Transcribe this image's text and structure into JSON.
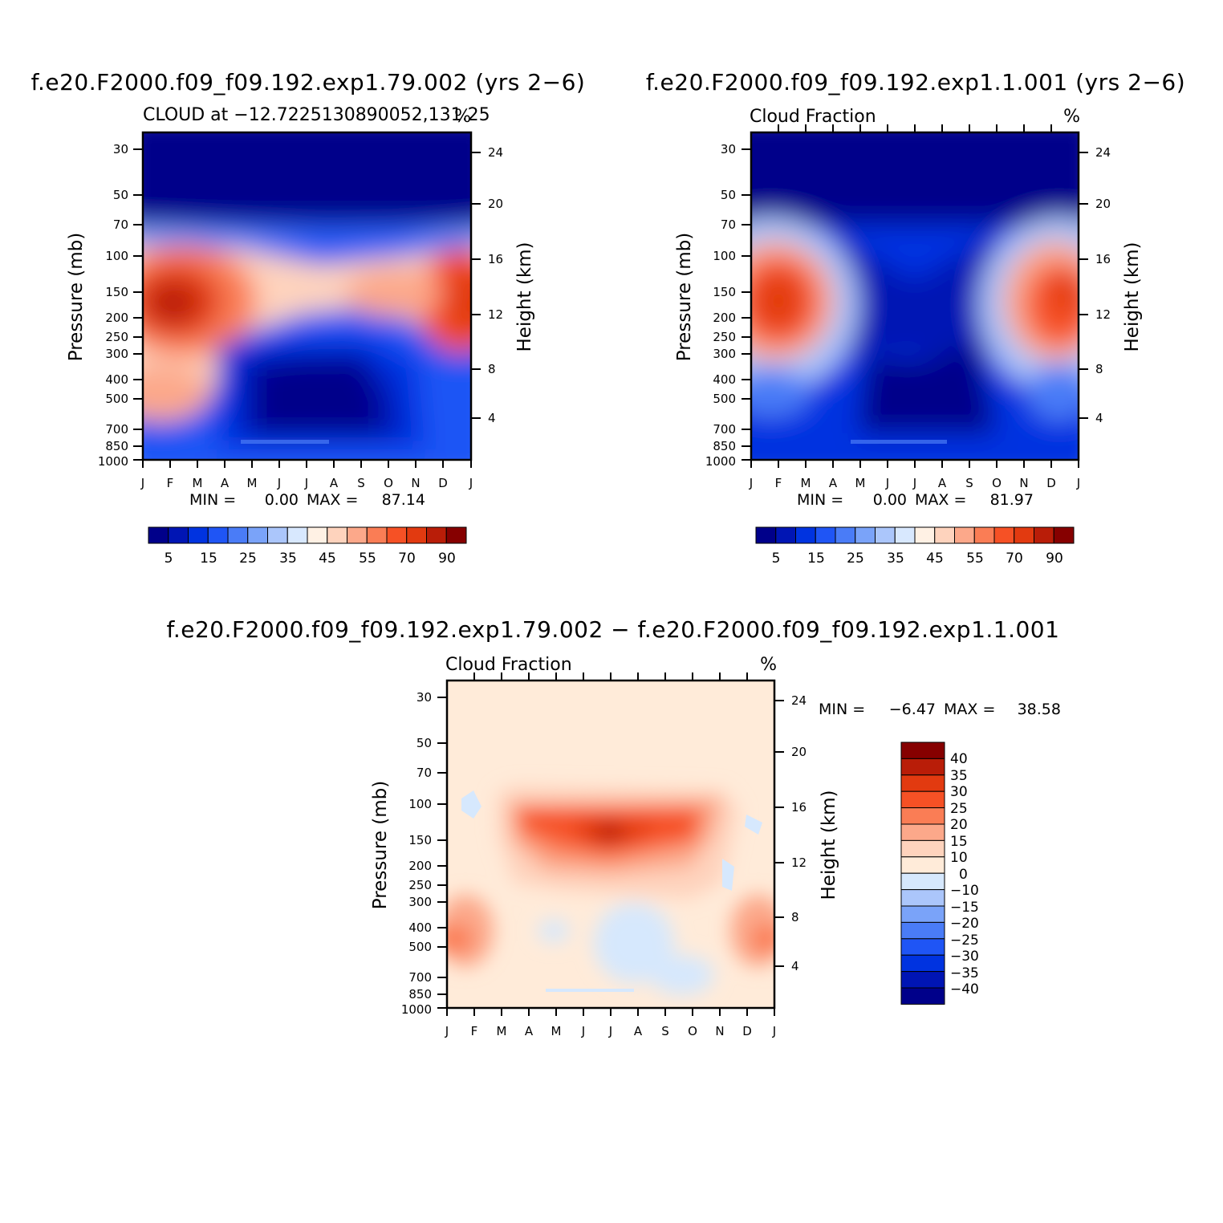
{
  "chart_data": [
    {
      "type": "heatmap",
      "title": "f.e20.F2000.f09_f09.192.exp1.79.002 (yrs 2-6)",
      "subtitle_left": "CLOUD at -12.7225130890052,131.25",
      "subtitle_right": "%",
      "x_ticks": [
        "J",
        "F",
        "M",
        "A",
        "M",
        "J",
        "J",
        "A",
        "S",
        "O",
        "N",
        "D",
        "J"
      ],
      "y_ticks": [
        "30",
        "50",
        "70",
        "100",
        "150",
        "200",
        "250",
        "300",
        "400",
        "500",
        "700",
        "850",
        "1000"
      ],
      "y_ticks_right": [
        "24",
        "20",
        "16",
        "12",
        "8",
        "4"
      ],
      "ylabel": "Pressure (mb)",
      "ylabel_right": "Height (km)",
      "stats": {
        "min_label": "MIN =",
        "min": "0.00",
        "max_label": "MAX =",
        "max": "87.14"
      },
      "colorbar_labels": [
        "5",
        "15",
        "25",
        "35",
        "45",
        "55",
        "70",
        "90"
      ]
    },
    {
      "type": "heatmap",
      "title": "f.e20.F2000.f09_f09.192.exp1.1.001 (yrs 2-6)",
      "subtitle_left": "Cloud Fraction",
      "subtitle_right": "%",
      "x_ticks": [
        "J",
        "F",
        "M",
        "A",
        "M",
        "J",
        "J",
        "A",
        "S",
        "O",
        "N",
        "D",
        "J"
      ],
      "y_ticks": [
        "30",
        "50",
        "70",
        "100",
        "150",
        "200",
        "250",
        "300",
        "400",
        "500",
        "700",
        "850",
        "1000"
      ],
      "y_ticks_right": [
        "24",
        "20",
        "16",
        "12",
        "8",
        "4"
      ],
      "ylabel": "Pressure (mb)",
      "ylabel_right": "Height (km)",
      "stats": {
        "min_label": "MIN =",
        "min": "0.00",
        "max_label": "MAX =",
        "max": "81.97"
      },
      "colorbar_labels": [
        "5",
        "15",
        "25",
        "35",
        "45",
        "55",
        "70",
        "90"
      ]
    },
    {
      "type": "heatmap",
      "title": "f.e20.F2000.f09_f09.192.exp1.79.002 - f.e20.F2000.f09_f09.192.exp1.1.001",
      "subtitle_left": "Cloud Fraction",
      "subtitle_right": "%",
      "x_ticks": [
        "J",
        "F",
        "M",
        "A",
        "M",
        "J",
        "J",
        "A",
        "S",
        "O",
        "N",
        "D",
        "J"
      ],
      "y_ticks": [
        "30",
        "50",
        "70",
        "100",
        "150",
        "200",
        "250",
        "300",
        "400",
        "500",
        "700",
        "850",
        "1000"
      ],
      "y_ticks_right": [
        "24",
        "20",
        "16",
        "12",
        "8",
        "4"
      ],
      "ylabel": "Pressure (mb)",
      "ylabel_right": "Height (km)",
      "stats": {
        "min_label": "MIN =",
        "min": "-6.47",
        "max_label": "MAX =",
        "max": "38.58"
      },
      "colorbar_labels": [
        "40",
        "35",
        "30",
        "25",
        "20",
        "15",
        "10",
        "0",
        "-10",
        "-15",
        "-20",
        "-25",
        "-30",
        "-35",
        "-40"
      ]
    }
  ],
  "colors": {
    "abs_scale": [
      "#00008a",
      "#0015b4",
      "#0033e0",
      "#1f55f5",
      "#4a7cf7",
      "#7aa3f9",
      "#abc6fb",
      "#d8e8fe",
      "#fff1e4",
      "#fed3bd",
      "#fca88a",
      "#fa7d55",
      "#f65125",
      "#e23a10",
      "#b91d08",
      "#860000"
    ],
    "diff_scale": [
      "#860000",
      "#b91d08",
      "#e23a10",
      "#f65125",
      "#fa7d55",
      "#fca88a",
      "#fed3bd",
      "#ffebd9",
      "#d6e8fd",
      "#abc6fb",
      "#7aa3f9",
      "#4a7cf7",
      "#1f55f5",
      "#0033e0",
      "#0015b4",
      "#00008a"
    ]
  }
}
